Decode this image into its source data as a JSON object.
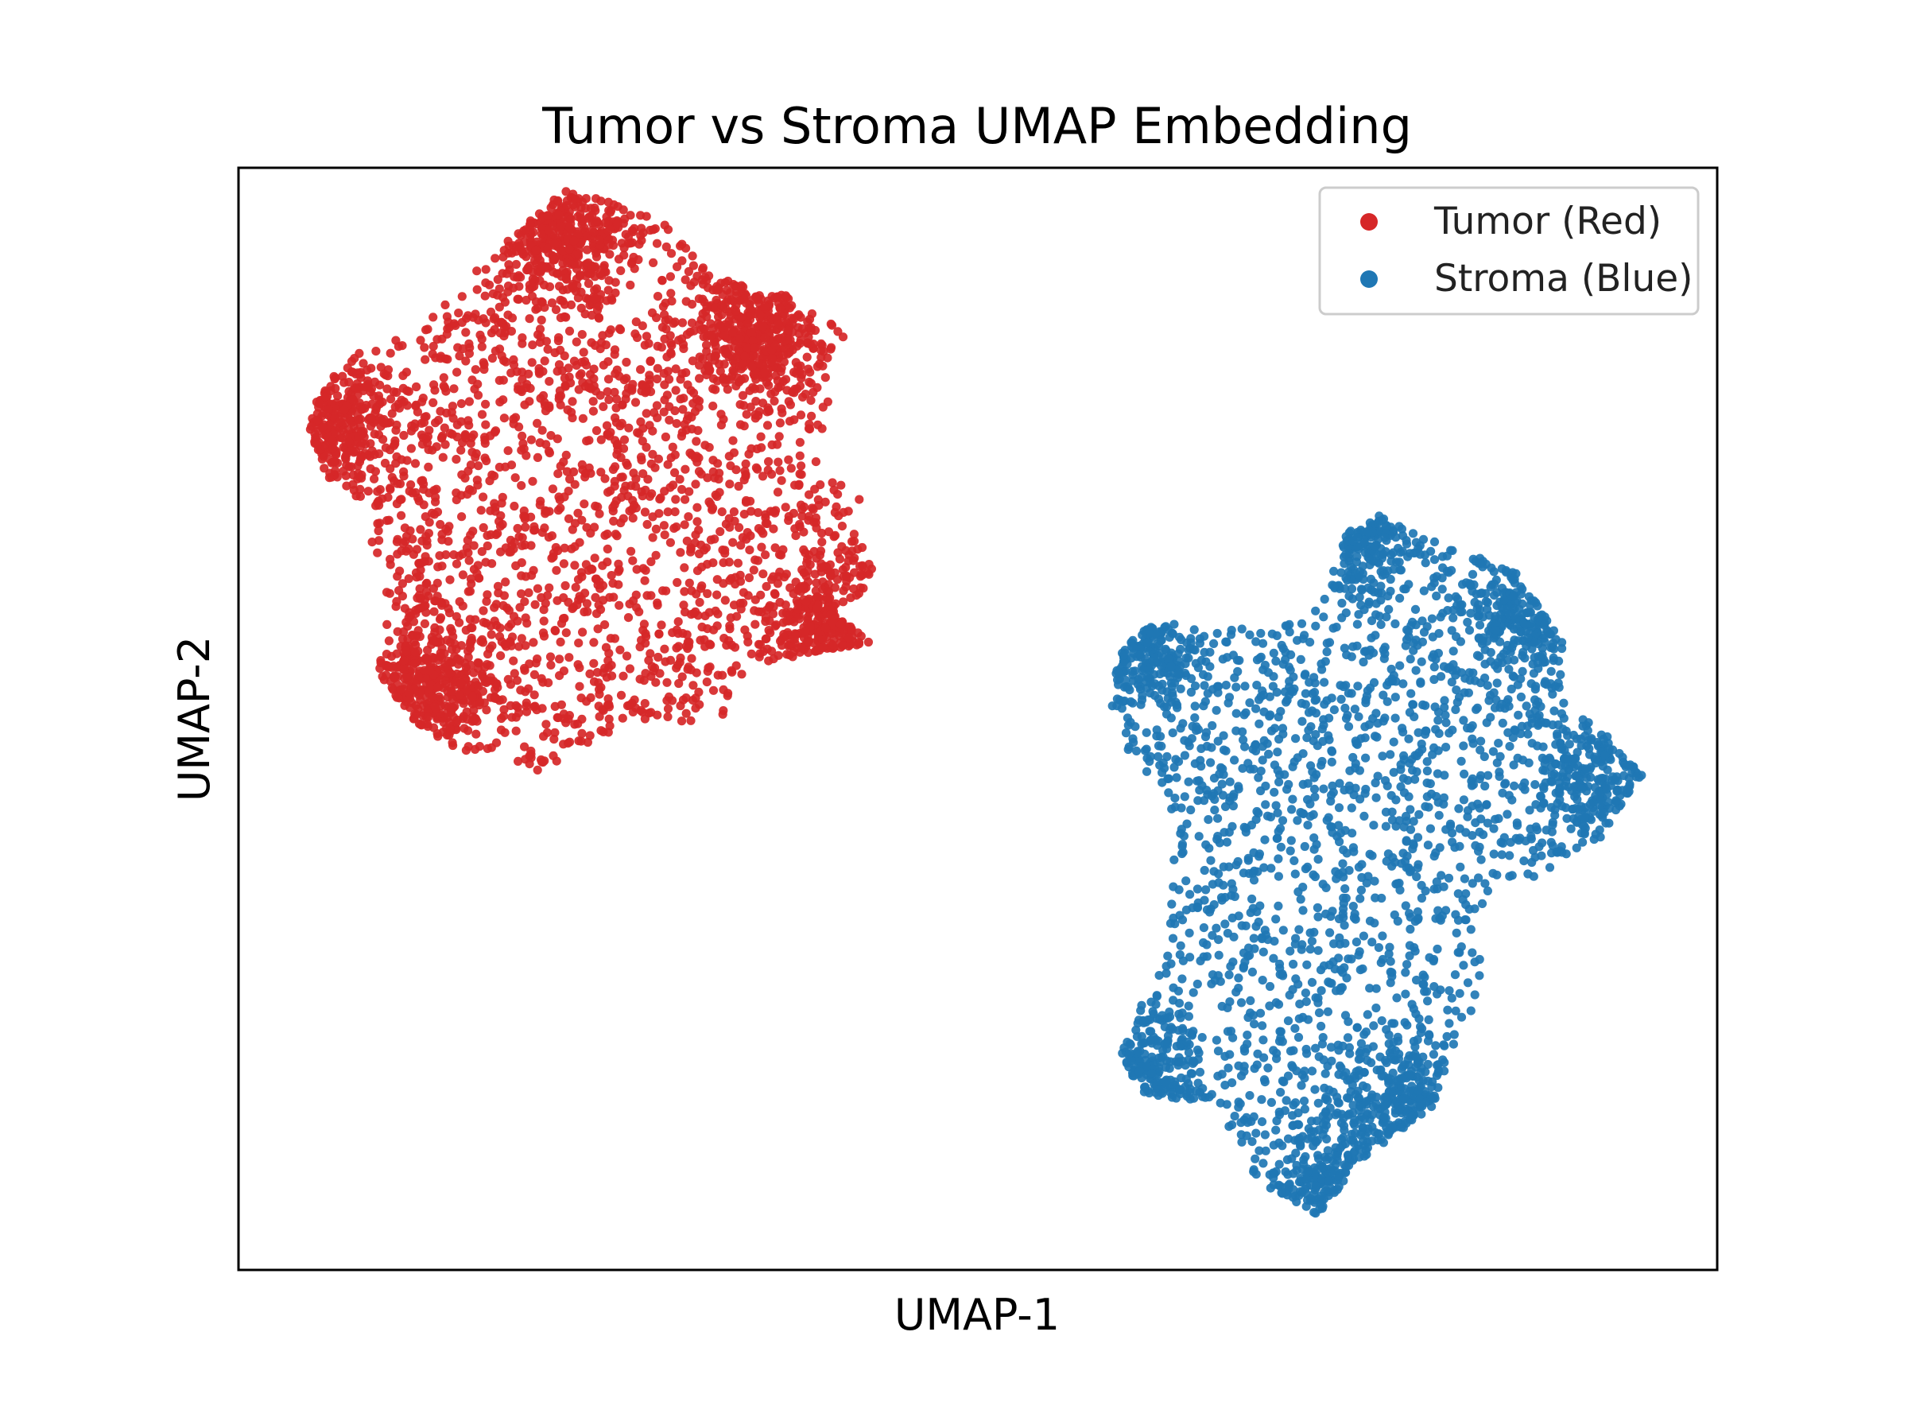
{
  "chart_data": {
    "type": "scatter",
    "title": "Tumor vs Stroma UMAP Embedding",
    "xlabel": "UMAP-1",
    "ylabel": "UMAP-2",
    "xlim": [
      0,
      10
    ],
    "ylim": [
      0,
      10
    ],
    "x_ticks": "none",
    "y_ticks": "none",
    "grid": false,
    "legend_position": "top-right",
    "series": [
      {
        "name": "Tumor (Red)",
        "color": "#d62728",
        "approx_point_count": 3500,
        "cluster_extent": {
          "x": [
            0.45,
            4.3
          ],
          "y": [
            4.5,
            9.8
          ]
        },
        "dense_regions": [
          {
            "x": 2.2,
            "y": 9.4
          },
          {
            "x": 0.6,
            "y": 7.7
          },
          {
            "x": 3.5,
            "y": 8.5
          },
          {
            "x": 1.3,
            "y": 5.3
          },
          {
            "x": 4.0,
            "y": 5.8
          }
        ]
      },
      {
        "name": "Stroma (Blue)",
        "color": "#1f77b4",
        "approx_point_count": 3000,
        "cluster_extent": {
          "x": [
            5.9,
            9.5
          ],
          "y": [
            0.5,
            6.9
          ]
        },
        "dense_regions": [
          {
            "x": 7.6,
            "y": 6.7
          },
          {
            "x": 6.1,
            "y": 5.6
          },
          {
            "x": 8.7,
            "y": 6.0
          },
          {
            "x": 9.2,
            "y": 4.4
          },
          {
            "x": 6.1,
            "y": 1.8
          },
          {
            "x": 7.4,
            "y": 0.7
          },
          {
            "x": 7.9,
            "y": 1.5
          }
        ]
      }
    ]
  }
}
